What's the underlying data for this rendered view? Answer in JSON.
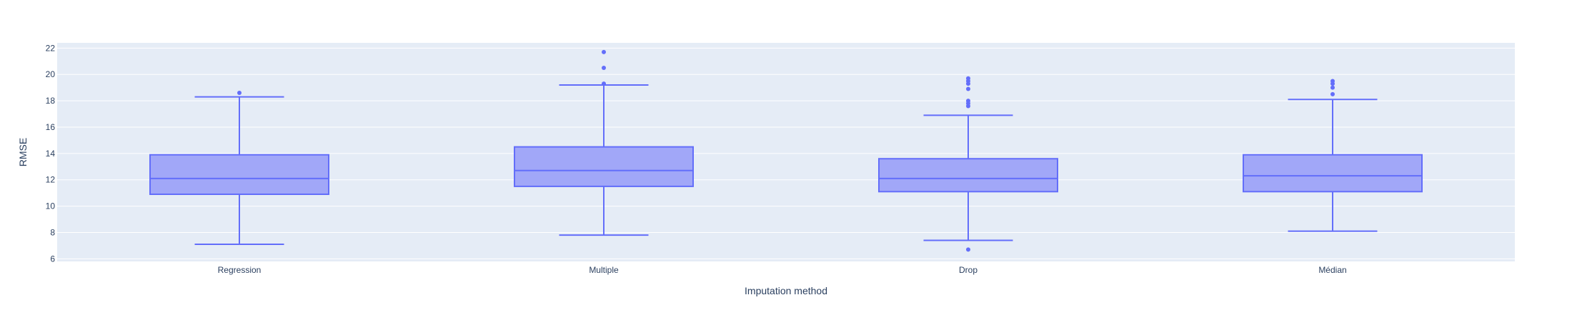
{
  "chart_data": {
    "type": "box",
    "title": "",
    "xlabel": "Imputation method",
    "ylabel": "RMSE",
    "ylim": [
      5.8,
      22.4
    ],
    "y_ticks": [
      6,
      8,
      10,
      12,
      14,
      16,
      18,
      20,
      22
    ],
    "categories": [
      "Regression",
      "Multiple",
      "Drop",
      "Médian"
    ],
    "grid": true,
    "legend": "none",
    "colors": {
      "plot_bg": "#e5ecf6",
      "grid": "#ffffff",
      "box_line": "#636efa",
      "box_fill": "#a1a7f8",
      "text": "#2a3f5f"
    },
    "boxes": [
      {
        "name": "Regression",
        "lower_whisker": 7.1,
        "q1": 10.9,
        "median": 12.1,
        "q3": 13.9,
        "upper_whisker": 18.3,
        "outliers": [
          18.6
        ]
      },
      {
        "name": "Multiple",
        "lower_whisker": 7.8,
        "q1": 11.5,
        "median": 12.7,
        "q3": 14.5,
        "upper_whisker": 19.2,
        "outliers": [
          19.3,
          20.5,
          21.7
        ]
      },
      {
        "name": "Drop",
        "lower_whisker": 7.4,
        "q1": 11.1,
        "median": 12.1,
        "q3": 13.6,
        "upper_whisker": 16.9,
        "outliers": [
          6.7,
          17.6,
          17.8,
          18.0,
          18.9,
          19.3,
          19.5,
          19.7
        ]
      },
      {
        "name": "Médian",
        "lower_whisker": 8.1,
        "q1": 11.1,
        "median": 12.3,
        "q3": 13.9,
        "upper_whisker": 18.1,
        "outliers": [
          18.5,
          19.0,
          19.3,
          19.5
        ]
      }
    ]
  }
}
